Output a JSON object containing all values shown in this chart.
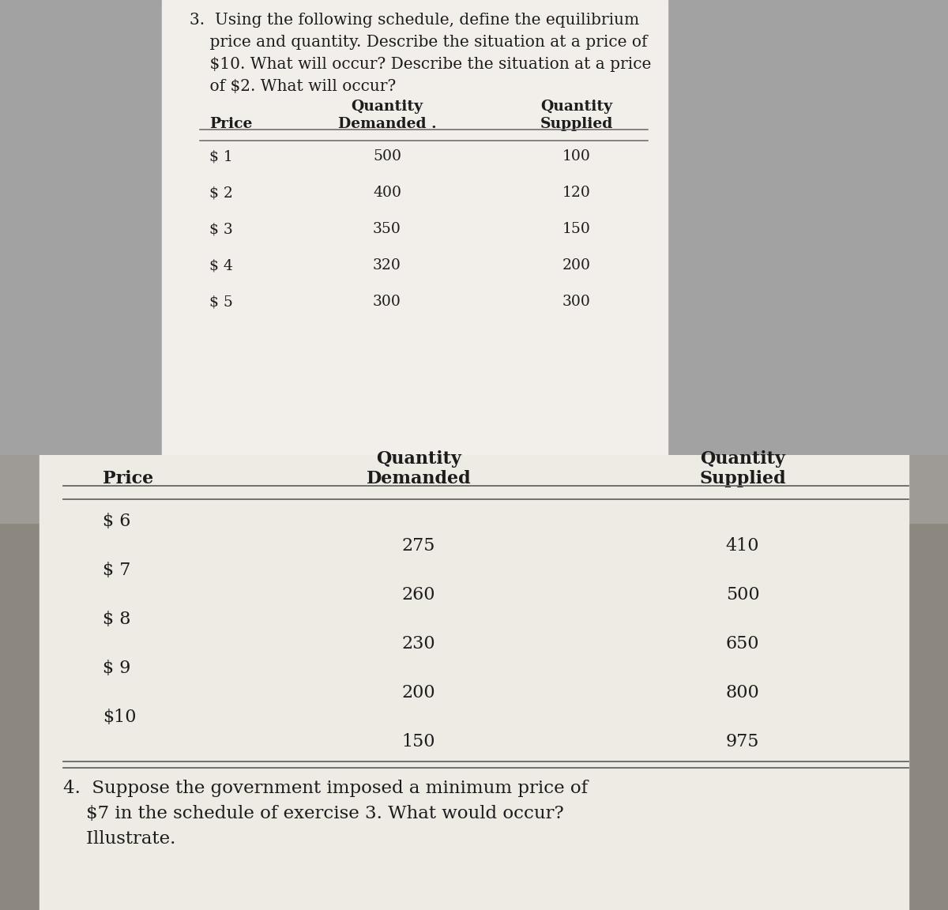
{
  "top_question": "3.  Using the following schedule, define the equilibrium\n    price and quantity. Describe the situation at a price of\n    $10. What will occur? Describe the situation at a price\n    of $2. What will occur?",
  "top_headers": [
    "Price",
    "Quantity\nDemanded .",
    "Quantity\nSupplied"
  ],
  "top_rows": [
    [
      "$ 1",
      "500",
      "100"
    ],
    [
      "$ 2",
      "400",
      "120"
    ],
    [
      "$ 3",
      "350",
      "150"
    ],
    [
      "$ 4",
      "320",
      "200"
    ],
    [
      "$ 5",
      "300",
      "300"
    ]
  ],
  "bot_headers": [
    "Price",
    "Quantity\nDemanded",
    "Quantity\nSupplied"
  ],
  "bot_price_col": [
    "$ 6",
    "$ 7",
    "$ 8",
    "$ 9",
    "$10"
  ],
  "bot_qty_demanded": [
    "275",
    "260",
    "230",
    "200",
    "150"
  ],
  "bot_qty_supplied": [
    "410",
    "500",
    "650",
    "800",
    "975"
  ],
  "bottom_text_line1": "4.  Suppose the government imposed a minimum price of",
  "bottom_text_line2": "    $7 in the schedule of exercise 3. What would occur?",
  "bottom_text_line3": "    Illustrate.",
  "bg_gray_top": "#a2a2a2",
  "bg_gray_bot": "#9e9890",
  "page_color_top": "#f2eeea",
  "page_color_bot": "#eeeae4",
  "text_dark": "#1c1c1c",
  "line_color": "#666666"
}
